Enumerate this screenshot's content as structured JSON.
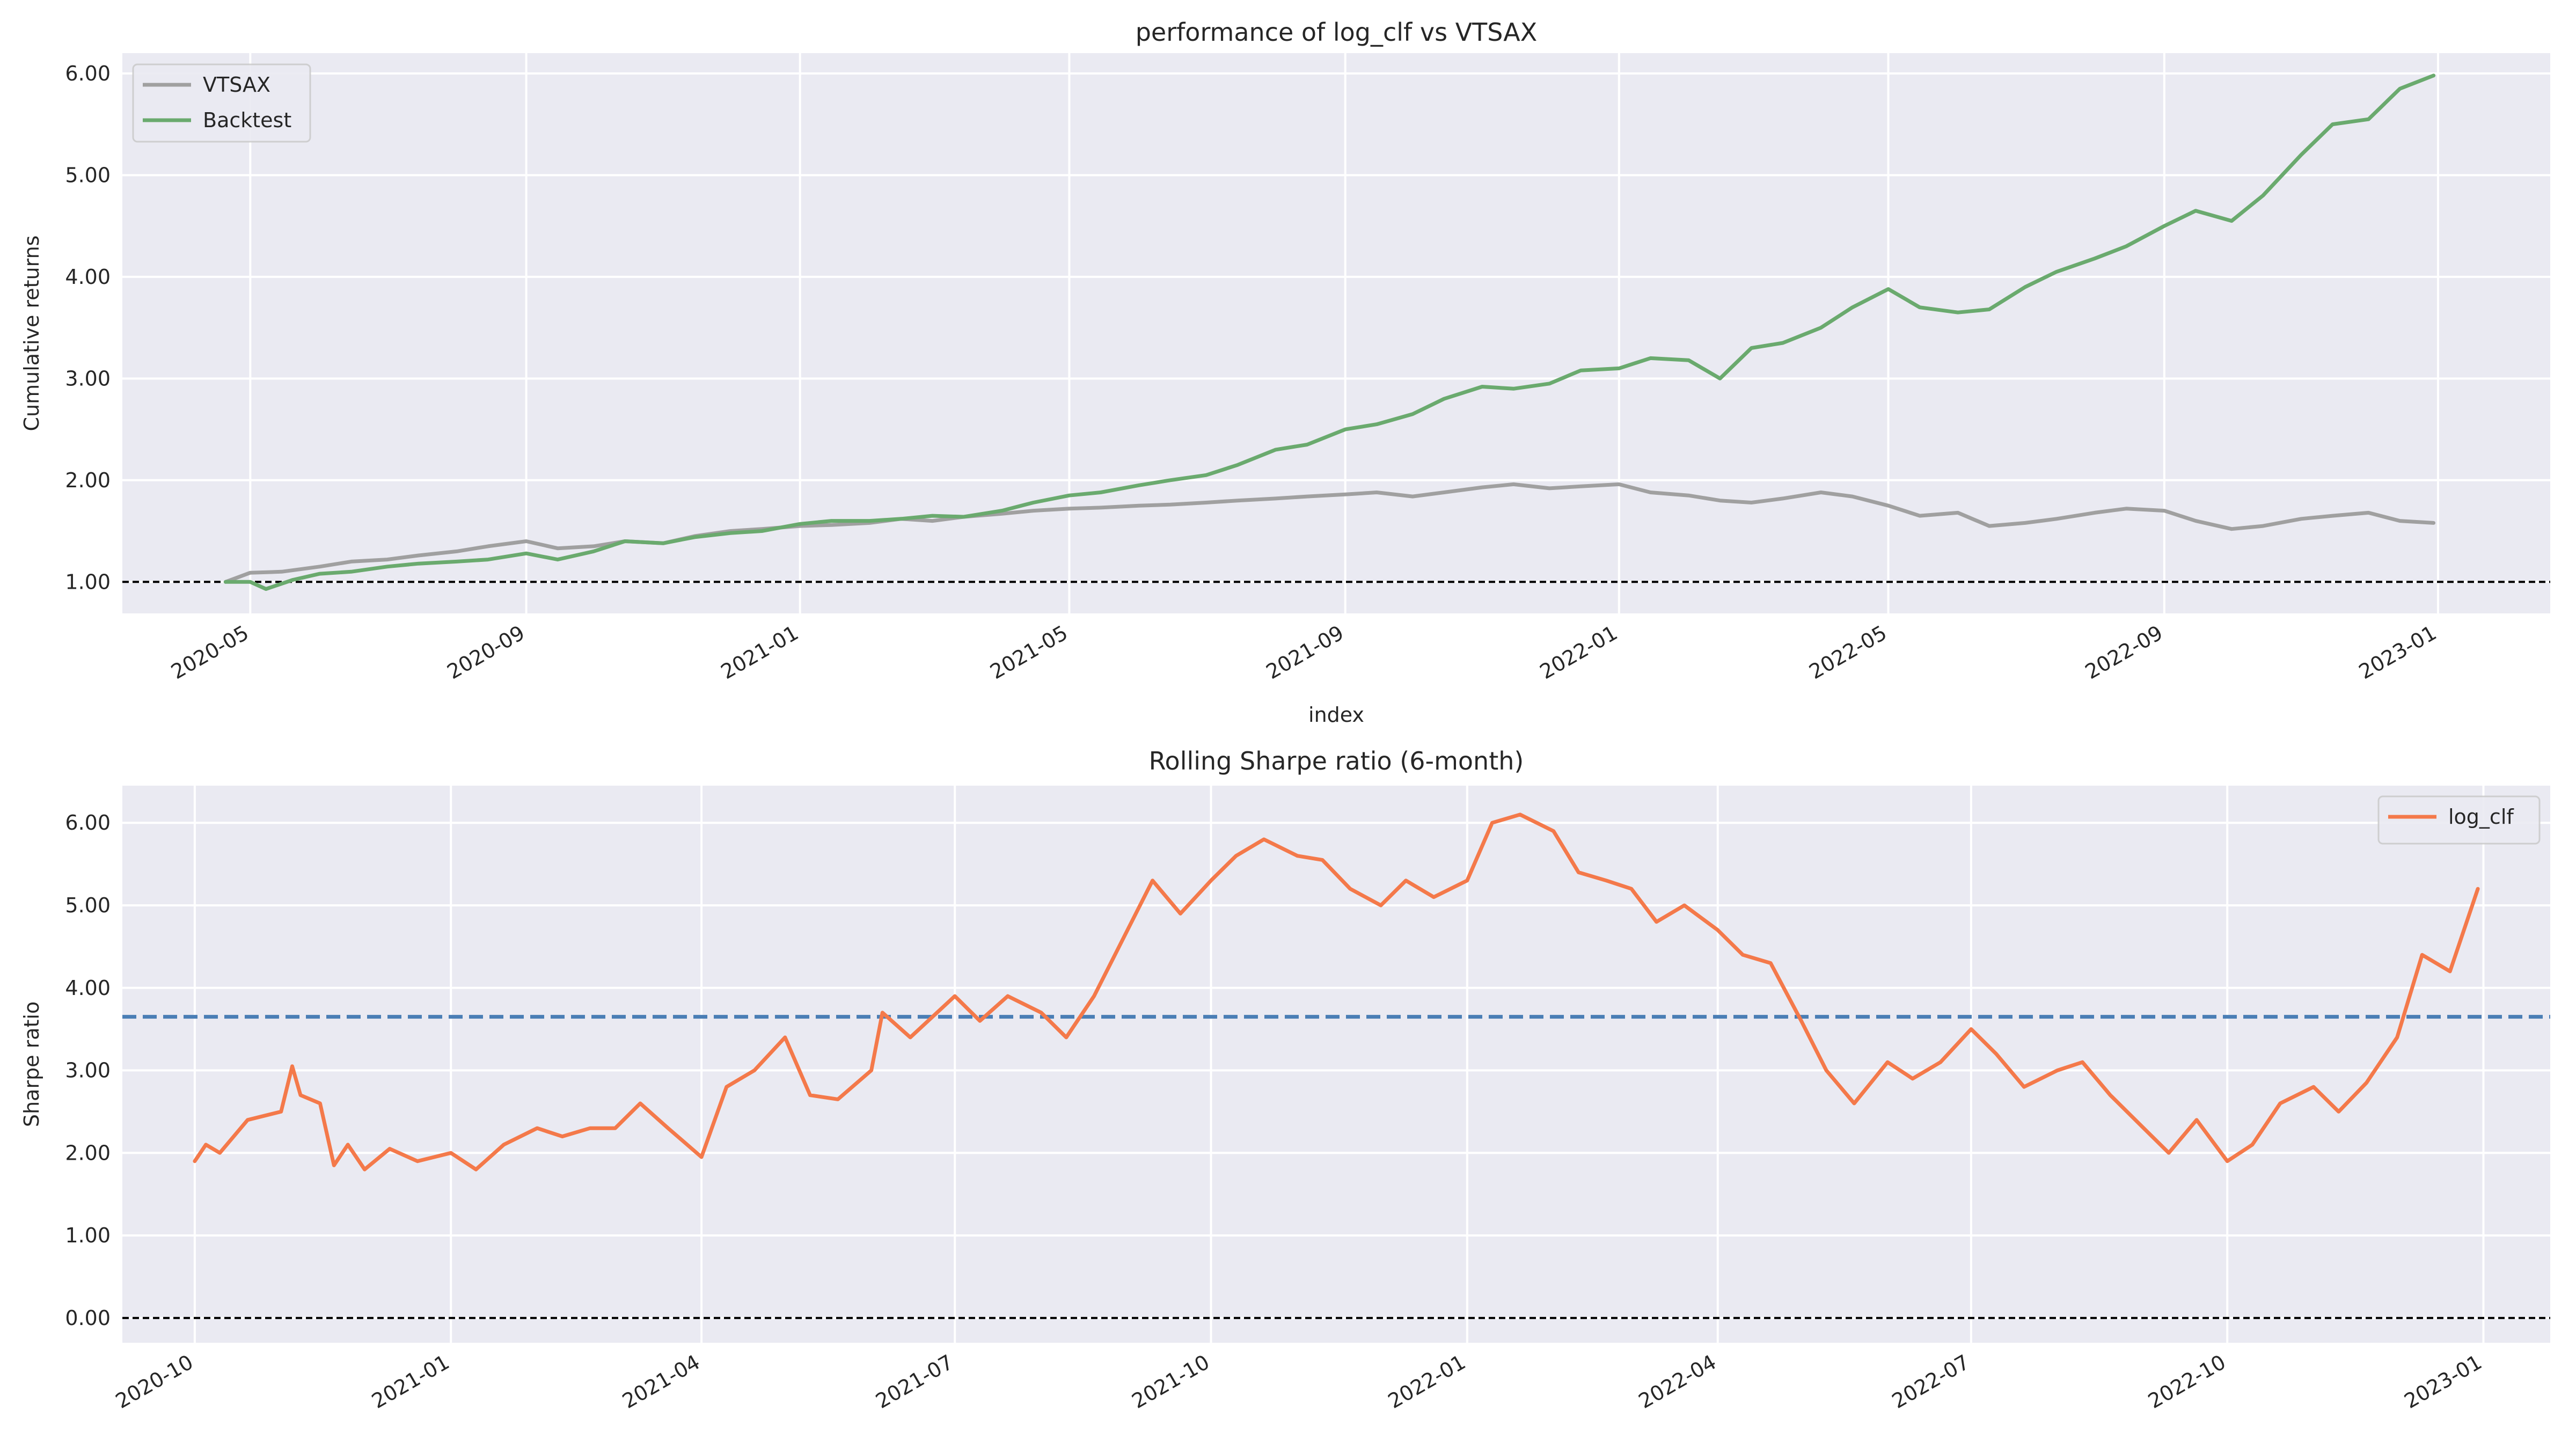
{
  "colors": {
    "vtsax": "#a0a0a0",
    "backtest": "#6aaa6e",
    "log_clf": "#f4794a",
    "mean_line": "#4a7eb5",
    "baseline": "#000000"
  },
  "chart_data": [
    {
      "type": "line",
      "title": "performance of log_clf vs VTSAX",
      "xlabel": "index",
      "ylabel": "Cumulative returns",
      "xlim": [
        "2020-03-05",
        "2023-02-20"
      ],
      "ylim": [
        0.69,
        6.2
      ],
      "xticks": [
        "2020-05",
        "2020-09",
        "2021-01",
        "2021-05",
        "2021-09",
        "2022-01",
        "2022-05",
        "2022-09",
        "2023-01"
      ],
      "yticks": [
        "1.00",
        "2.00",
        "3.00",
        "4.00",
        "5.00",
        "6.00"
      ],
      "grid": true,
      "legend_position": "upper-left",
      "reference_lines": [
        {
          "y": 1.0,
          "style": "dashed",
          "color": "baseline"
        }
      ],
      "series": [
        {
          "name": "VTSAX",
          "color_key": "vtsax",
          "points": [
            [
              "2020-04-20",
              1.0
            ],
            [
              "2020-05-01",
              1.09
            ],
            [
              "2020-05-15",
              1.1
            ],
            [
              "2020-06-01",
              1.15
            ],
            [
              "2020-06-15",
              1.2
            ],
            [
              "2020-07-01",
              1.22
            ],
            [
              "2020-07-15",
              1.26
            ],
            [
              "2020-08-01",
              1.3
            ],
            [
              "2020-08-15",
              1.35
            ],
            [
              "2020-09-01",
              1.4
            ],
            [
              "2020-09-15",
              1.33
            ],
            [
              "2020-10-01",
              1.35
            ],
            [
              "2020-10-15",
              1.4
            ],
            [
              "2020-11-01",
              1.38
            ],
            [
              "2020-11-15",
              1.45
            ],
            [
              "2020-12-01",
              1.5
            ],
            [
              "2020-12-15",
              1.52
            ],
            [
              "2021-01-01",
              1.55
            ],
            [
              "2021-01-15",
              1.56
            ],
            [
              "2021-02-01",
              1.58
            ],
            [
              "2021-02-15",
              1.62
            ],
            [
              "2021-03-01",
              1.6
            ],
            [
              "2021-03-15",
              1.64
            ],
            [
              "2021-04-01",
              1.67
            ],
            [
              "2021-04-15",
              1.7
            ],
            [
              "2021-05-01",
              1.72
            ],
            [
              "2021-05-15",
              1.73
            ],
            [
              "2021-06-01",
              1.75
            ],
            [
              "2021-06-15",
              1.76
            ],
            [
              "2021-07-01",
              1.78
            ],
            [
              "2021-07-15",
              1.8
            ],
            [
              "2021-08-01",
              1.82
            ],
            [
              "2021-08-15",
              1.84
            ],
            [
              "2021-09-01",
              1.86
            ],
            [
              "2021-09-15",
              1.88
            ],
            [
              "2021-10-01",
              1.84
            ],
            [
              "2021-10-15",
              1.88
            ],
            [
              "2021-11-01",
              1.93
            ],
            [
              "2021-11-15",
              1.96
            ],
            [
              "2021-12-01",
              1.92
            ],
            [
              "2021-12-15",
              1.94
            ],
            [
              "2022-01-01",
              1.96
            ],
            [
              "2022-01-15",
              1.88
            ],
            [
              "2022-02-01",
              1.85
            ],
            [
              "2022-02-15",
              1.8
            ],
            [
              "2022-03-01",
              1.78
            ],
            [
              "2022-03-15",
              1.82
            ],
            [
              "2022-04-01",
              1.88
            ],
            [
              "2022-04-15",
              1.84
            ],
            [
              "2022-05-01",
              1.75
            ],
            [
              "2022-05-15",
              1.65
            ],
            [
              "2022-06-01",
              1.68
            ],
            [
              "2022-06-15",
              1.55
            ],
            [
              "2022-07-01",
              1.58
            ],
            [
              "2022-07-15",
              1.62
            ],
            [
              "2022-08-01",
              1.68
            ],
            [
              "2022-08-15",
              1.72
            ],
            [
              "2022-09-01",
              1.7
            ],
            [
              "2022-09-15",
              1.6
            ],
            [
              "2022-10-01",
              1.52
            ],
            [
              "2022-10-15",
              1.55
            ],
            [
              "2022-11-01",
              1.62
            ],
            [
              "2022-11-15",
              1.65
            ],
            [
              "2022-12-01",
              1.68
            ],
            [
              "2022-12-15",
              1.6
            ],
            [
              "2022-12-30",
              1.58
            ]
          ]
        },
        {
          "name": "Backtest",
          "color_key": "backtest",
          "points": [
            [
              "2020-04-20",
              1.0
            ],
            [
              "2020-05-01",
              1.0
            ],
            [
              "2020-05-08",
              0.93
            ],
            [
              "2020-05-20",
              1.02
            ],
            [
              "2020-06-01",
              1.08
            ],
            [
              "2020-06-15",
              1.1
            ],
            [
              "2020-07-01",
              1.15
            ],
            [
              "2020-07-15",
              1.18
            ],
            [
              "2020-08-01",
              1.2
            ],
            [
              "2020-08-15",
              1.22
            ],
            [
              "2020-09-01",
              1.28
            ],
            [
              "2020-09-15",
              1.22
            ],
            [
              "2020-10-01",
              1.3
            ],
            [
              "2020-10-15",
              1.4
            ],
            [
              "2020-11-01",
              1.38
            ],
            [
              "2020-11-15",
              1.44
            ],
            [
              "2020-12-01",
              1.48
            ],
            [
              "2020-12-15",
              1.5
            ],
            [
              "2021-01-01",
              1.57
            ],
            [
              "2021-01-15",
              1.6
            ],
            [
              "2021-02-01",
              1.6
            ],
            [
              "2021-02-15",
              1.62
            ],
            [
              "2021-03-01",
              1.65
            ],
            [
              "2021-03-15",
              1.64
            ],
            [
              "2021-04-01",
              1.7
            ],
            [
              "2021-04-15",
              1.78
            ],
            [
              "2021-05-01",
              1.85
            ],
            [
              "2021-05-15",
              1.88
            ],
            [
              "2021-06-01",
              1.95
            ],
            [
              "2021-06-15",
              2.0
            ],
            [
              "2021-07-01",
              2.05
            ],
            [
              "2021-07-15",
              2.15
            ],
            [
              "2021-08-01",
              2.3
            ],
            [
              "2021-08-15",
              2.35
            ],
            [
              "2021-09-01",
              2.5
            ],
            [
              "2021-09-15",
              2.55
            ],
            [
              "2021-10-01",
              2.65
            ],
            [
              "2021-10-15",
              2.8
            ],
            [
              "2021-11-01",
              2.92
            ],
            [
              "2021-11-15",
              2.9
            ],
            [
              "2021-12-01",
              2.95
            ],
            [
              "2021-12-15",
              3.08
            ],
            [
              "2022-01-01",
              3.1
            ],
            [
              "2022-01-15",
              3.2
            ],
            [
              "2022-02-01",
              3.18
            ],
            [
              "2022-02-15",
              3.0
            ],
            [
              "2022-03-01",
              3.3
            ],
            [
              "2022-03-15",
              3.35
            ],
            [
              "2022-04-01",
              3.5
            ],
            [
              "2022-04-15",
              3.7
            ],
            [
              "2022-05-01",
              3.88
            ],
            [
              "2022-05-15",
              3.7
            ],
            [
              "2022-06-01",
              3.65
            ],
            [
              "2022-06-15",
              3.68
            ],
            [
              "2022-07-01",
              3.9
            ],
            [
              "2022-07-15",
              4.05
            ],
            [
              "2022-08-01",
              4.18
            ],
            [
              "2022-08-15",
              4.3
            ],
            [
              "2022-09-01",
              4.5
            ],
            [
              "2022-09-15",
              4.65
            ],
            [
              "2022-10-01",
              4.55
            ],
            [
              "2022-10-15",
              4.8
            ],
            [
              "2022-11-01",
              5.2
            ],
            [
              "2022-11-15",
              5.5
            ],
            [
              "2022-12-01",
              5.55
            ],
            [
              "2022-12-15",
              5.85
            ],
            [
              "2022-12-30",
              5.98
            ]
          ]
        }
      ]
    },
    {
      "type": "line",
      "title": "Rolling Sharpe ratio (6-month)",
      "xlabel": "",
      "ylabel": "Sharpe ratio",
      "xlim": [
        "2020-09-05",
        "2023-01-25"
      ],
      "ylim": [
        -0.3,
        6.45
      ],
      "xticks": [
        "2020-10",
        "2021-01",
        "2021-04",
        "2021-07",
        "2021-10",
        "2022-01",
        "2022-04",
        "2022-07",
        "2022-10",
        "2023-01"
      ],
      "yticks": [
        "0.00",
        "1.00",
        "2.00",
        "3.00",
        "4.00",
        "5.00",
        "6.00"
      ],
      "grid": true,
      "legend_position": "upper-right",
      "reference_lines": [
        {
          "y": 0.0,
          "style": "dashed",
          "color": "baseline"
        },
        {
          "y": 3.65,
          "style": "dashed",
          "color": "mean_line"
        }
      ],
      "series": [
        {
          "name": "log_clf",
          "color_key": "log_clf",
          "points": [
            [
              "2020-10-01",
              1.9
            ],
            [
              "2020-10-05",
              2.1
            ],
            [
              "2020-10-10",
              2.0
            ],
            [
              "2020-10-20",
              2.4
            ],
            [
              "2020-11-01",
              2.5
            ],
            [
              "2020-11-05",
              3.05
            ],
            [
              "2020-11-08",
              2.7
            ],
            [
              "2020-11-15",
              2.6
            ],
            [
              "2020-11-20",
              1.85
            ],
            [
              "2020-11-25",
              2.1
            ],
            [
              "2020-12-01",
              1.8
            ],
            [
              "2020-12-10",
              2.05
            ],
            [
              "2020-12-20",
              1.9
            ],
            [
              "2021-01-01",
              2.0
            ],
            [
              "2021-01-10",
              1.8
            ],
            [
              "2021-01-20",
              2.1
            ],
            [
              "2021-02-01",
              2.3
            ],
            [
              "2021-02-10",
              2.2
            ],
            [
              "2021-02-20",
              2.3
            ],
            [
              "2021-03-01",
              2.3
            ],
            [
              "2021-03-10",
              2.6
            ],
            [
              "2021-03-20",
              2.3
            ],
            [
              "2021-04-01",
              1.95
            ],
            [
              "2021-04-10",
              2.8
            ],
            [
              "2021-04-20",
              3.0
            ],
            [
              "2021-05-01",
              3.4
            ],
            [
              "2021-05-10",
              2.7
            ],
            [
              "2021-05-20",
              2.65
            ],
            [
              "2021-06-01",
              3.0
            ],
            [
              "2021-06-05",
              3.7
            ],
            [
              "2021-06-15",
              3.4
            ],
            [
              "2021-07-01",
              3.9
            ],
            [
              "2021-07-10",
              3.6
            ],
            [
              "2021-07-20",
              3.9
            ],
            [
              "2021-08-01",
              3.7
            ],
            [
              "2021-08-10",
              3.4
            ],
            [
              "2021-08-20",
              3.9
            ],
            [
              "2021-09-01",
              4.7
            ],
            [
              "2021-09-10",
              5.3
            ],
            [
              "2021-09-20",
              4.9
            ],
            [
              "2021-10-01",
              5.3
            ],
            [
              "2021-10-10",
              5.6
            ],
            [
              "2021-10-20",
              5.8
            ],
            [
              "2021-11-01",
              5.6
            ],
            [
              "2021-11-10",
              5.55
            ],
            [
              "2021-11-20",
              5.2
            ],
            [
              "2021-12-01",
              5.0
            ],
            [
              "2021-12-10",
              5.3
            ],
            [
              "2021-12-20",
              5.1
            ],
            [
              "2022-01-01",
              5.3
            ],
            [
              "2022-01-10",
              6.0
            ],
            [
              "2022-01-20",
              6.1
            ],
            [
              "2022-02-01",
              5.9
            ],
            [
              "2022-02-10",
              5.4
            ],
            [
              "2022-02-20",
              5.3
            ],
            [
              "2022-03-01",
              5.2
            ],
            [
              "2022-03-10",
              4.8
            ],
            [
              "2022-03-20",
              5.0
            ],
            [
              "2022-04-01",
              4.7
            ],
            [
              "2022-04-10",
              4.4
            ],
            [
              "2022-04-20",
              4.3
            ],
            [
              "2022-05-01",
              3.6
            ],
            [
              "2022-05-10",
              3.0
            ],
            [
              "2022-05-20",
              2.6
            ],
            [
              "2022-06-01",
              3.1
            ],
            [
              "2022-06-10",
              2.9
            ],
            [
              "2022-06-20",
              3.1
            ],
            [
              "2022-07-01",
              3.5
            ],
            [
              "2022-07-10",
              3.2
            ],
            [
              "2022-07-20",
              2.8
            ],
            [
              "2022-08-01",
              3.0
            ],
            [
              "2022-08-10",
              3.1
            ],
            [
              "2022-08-20",
              2.7
            ],
            [
              "2022-09-01",
              2.3
            ],
            [
              "2022-09-10",
              2.0
            ],
            [
              "2022-09-20",
              2.4
            ],
            [
              "2022-10-01",
              1.9
            ],
            [
              "2022-10-10",
              2.1
            ],
            [
              "2022-10-20",
              2.6
            ],
            [
              "2022-11-01",
              2.8
            ],
            [
              "2022-11-10",
              2.5
            ],
            [
              "2022-11-20",
              2.85
            ],
            [
              "2022-12-01",
              3.4
            ],
            [
              "2022-12-10",
              4.4
            ],
            [
              "2022-12-20",
              4.2
            ],
            [
              "2022-12-30",
              5.2
            ]
          ]
        }
      ]
    }
  ]
}
